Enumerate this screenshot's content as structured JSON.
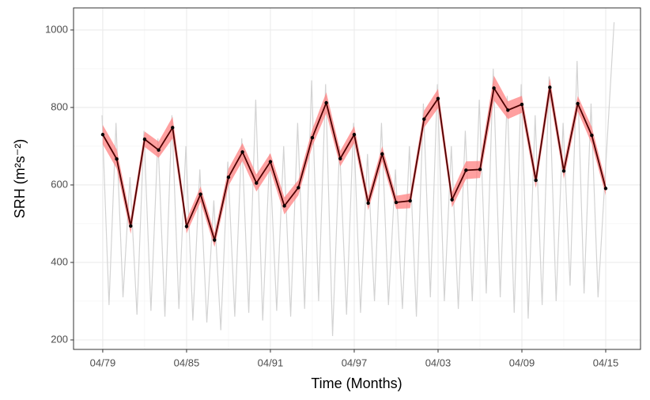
{
  "chart_data": {
    "type": "line",
    "xlabel": "Time (Months)",
    "ylabel": "SRH (m²s⁻²)",
    "xlim": [
      1977.16,
      2017.74
    ],
    "ylim": [
      175.5,
      1057
    ],
    "xticks": [
      {
        "value": 1979.25,
        "label": "04/79"
      },
      {
        "value": 1985.25,
        "label": "04/85"
      },
      {
        "value": 1991.25,
        "label": "04/91"
      },
      {
        "value": 1997.25,
        "label": "04/97"
      },
      {
        "value": 2003.25,
        "label": "04/03"
      },
      {
        "value": 2009.25,
        "label": "04/09"
      },
      {
        "value": 2015.25,
        "label": "04/15"
      }
    ],
    "xminorticks": [
      1982.25,
      1988.25,
      1994.25,
      2000.25,
      2006.25,
      2012.25
    ],
    "yticks": [
      200,
      400,
      600,
      800,
      1000
    ],
    "yminorticks": [
      300,
      500,
      700,
      900
    ],
    "grid": true,
    "background": {
      "color": "#d3d3d3",
      "x": [
        1979.2,
        1979.7,
        1980.2,
        1980.7,
        1981.2,
        1981.7,
        1982.2,
        1982.7,
        1983.2,
        1983.7,
        1984.2,
        1984.7,
        1985.2,
        1985.7,
        1986.2,
        1986.7,
        1987.2,
        1987.7,
        1988.2,
        1988.7,
        1989.2,
        1989.7,
        1990.2,
        1990.7,
        1991.2,
        1991.7,
        1992.2,
        1992.7,
        1993.2,
        1993.7,
        1994.2,
        1994.7,
        1995.2,
        1995.7,
        1996.2,
        1996.7,
        1997.2,
        1997.7,
        1998.2,
        1998.7,
        1999.2,
        1999.7,
        2000.2,
        2000.7,
        2001.2,
        2001.7,
        2002.2,
        2002.7,
        2003.2,
        2003.7,
        2004.2,
        2004.7,
        2005.2,
        2005.7,
        2006.2,
        2006.7,
        2007.2,
        2007.7,
        2008.2,
        2008.7,
        2009.2,
        2009.7,
        2010.2,
        2010.7,
        2011.2,
        2011.7,
        2012.2,
        2012.7,
        2013.2,
        2013.7,
        2014.2,
        2014.7,
        2015.85
      ],
      "values": [
        780,
        290,
        760,
        310,
        620,
        265,
        740,
        275,
        720,
        260,
        780,
        280,
        700,
        250,
        640,
        245,
        560,
        225,
        660,
        260,
        720,
        270,
        820,
        250,
        680,
        275,
        700,
        260,
        760,
        280,
        870,
        300,
        860,
        210,
        700,
        265,
        760,
        270,
        680,
        300,
        760,
        290,
        640,
        280,
        700,
        260,
        810,
        310,
        860,
        300,
        700,
        280,
        740,
        300,
        820,
        320,
        900,
        310,
        830,
        270,
        860,
        255,
        780,
        290,
        880,
        300,
        760,
        340,
        920,
        320,
        810,
        310,
        1020
      ]
    },
    "x": [
      1979.25,
      1980.25,
      1981.25,
      1982.25,
      1983.25,
      1984.25,
      1985.25,
      1986.25,
      1987.25,
      1988.25,
      1989.25,
      1990.25,
      1991.25,
      1992.25,
      1993.25,
      1994.25,
      1995.25,
      1996.25,
      1997.25,
      1998.25,
      1999.25,
      2000.25,
      2001.25,
      2002.25,
      2003.25,
      2004.25,
      2005.25,
      2006.25,
      2007.25,
      2008.25,
      2009.25,
      2010.25,
      2011.25,
      2012.25,
      2013.25,
      2014.25,
      2015.25
    ],
    "series": [
      {
        "color": "#4d0000",
        "band_color": "#ff8080",
        "values": [
          730,
          667,
          494,
          718,
          690,
          748,
          493,
          576,
          458,
          620,
          685,
          605,
          660,
          546,
          593,
          722,
          812,
          668,
          730,
          553,
          680,
          555,
          559,
          770,
          823,
          562,
          638,
          640,
          850,
          793,
          808,
          612,
          852,
          636,
          810,
          728,
          591
        ],
        "lower": [
          705,
          642,
          474,
          698,
          670,
          720,
          475,
          556,
          440,
          598,
          662,
          583,
          638,
          524,
          573,
          700,
          785,
          648,
          708,
          535,
          660,
          538,
          540,
          748,
          798,
          542,
          615,
          618,
          818,
          770,
          786,
          592,
          828,
          616,
          790,
          706,
          573
        ],
        "upper": [
          755,
          692,
          514,
          738,
          712,
          776,
          511,
          596,
          476,
          642,
          708,
          627,
          682,
          568,
          613,
          744,
          839,
          688,
          752,
          571,
          700,
          572,
          578,
          792,
          848,
          582,
          661,
          662,
          882,
          816,
          830,
          632,
          876,
          656,
          830,
          750,
          609
        ]
      }
    ]
  }
}
